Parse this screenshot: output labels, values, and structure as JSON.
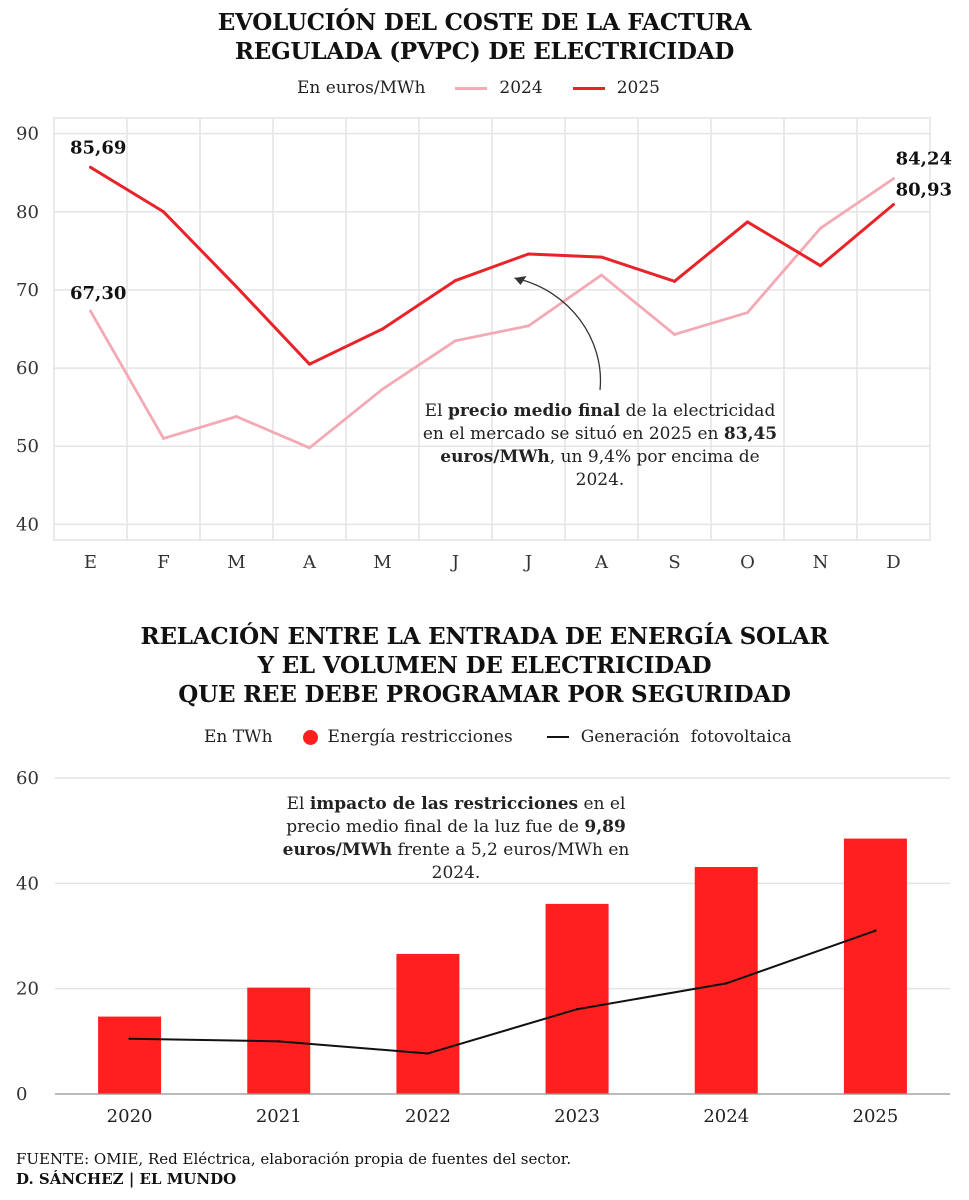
{
  "chart1": {
    "title_lines": [
      "EVOLUCIÓN DEL COSTE DE LA FACTURA",
      "REGULADA (PVPC) DE ELECTRICIDAD"
    ],
    "unit_label": "En euros/MWh",
    "annotation": {
      "parts": [
        {
          "t": "El ",
          "b": false
        },
        {
          "t": "precio medio final",
          "b": true
        },
        {
          "t": " de la electricidad en el mercado se situó en 2025 en ",
          "b": false
        },
        {
          "t": "83,45 euros/MWh",
          "b": true
        },
        {
          "t": ", un 9,4% por encima de 2024.",
          "b": false
        }
      ]
    },
    "value_labels": {
      "s2025_start": "85,69",
      "s2024_start": "67,30",
      "s2024_end": "84,24",
      "s2025_end": "80,93"
    }
  },
  "chart2": {
    "title_lines": [
      "RELACIÓN ENTRE LA ENTRADA DE ENERGÍA SOLAR",
      "Y EL VOLUMEN DE ELECTRICIDAD",
      "QUE REE DEBE PROGRAMAR POR SEGURIDAD"
    ],
    "unit_label": "En TWh",
    "annotation": {
      "parts": [
        {
          "t": "El ",
          "b": false
        },
        {
          "t": "impacto de las restricciones",
          "b": true
        },
        {
          "t": " en el precio medio final de la luz fue de ",
          "b": false
        },
        {
          "t": "9,89 euros/MWh",
          "b": true
        },
        {
          "t": " frente a 5,2 euros/MWh en 2024.",
          "b": false
        }
      ]
    }
  },
  "chart_data": [
    {
      "type": "line",
      "title": "EVOLUCIÓN DEL COSTE DE LA FACTURA REGULADA (PVPC) DE ELECTRICIDAD",
      "ylabel": "En euros/MWh",
      "categories": [
        "E",
        "F",
        "M",
        "A",
        "M",
        "J",
        "J",
        "A",
        "S",
        "O",
        "N",
        "D"
      ],
      "yticks": [
        40,
        50,
        60,
        70,
        80,
        90
      ],
      "ylim": [
        38,
        92
      ],
      "grid": true,
      "legend_position": "top",
      "series": [
        {
          "name": "2024",
          "color": "#f4aab5",
          "values": [
            67.3,
            51.0,
            53.8,
            49.8,
            57.3,
            63.5,
            65.4,
            71.9,
            64.3,
            67.1,
            77.9,
            84.24
          ]
        },
        {
          "name": "2025",
          "color": "#e8242a",
          "values": [
            85.69,
            80.0,
            70.4,
            60.5,
            65.0,
            71.2,
            74.6,
            74.2,
            71.1,
            78.7,
            73.1,
            80.93
          ]
        }
      ]
    },
    {
      "type": "bar",
      "title": "RELACIÓN ENTRE LA ENTRADA DE ENERGÍA SOLAR Y EL VOLUMEN DE ELECTRICIDAD QUE REE DEBE PROGRAMAR POR SEGURIDAD",
      "ylabel": "En TWh",
      "categories": [
        "2020",
        "2021",
        "2022",
        "2023",
        "2024",
        "2025"
      ],
      "yticks": [
        0,
        20,
        40,
        60
      ],
      "ylim": [
        0,
        60
      ],
      "grid": true,
      "legend_position": "top",
      "series": [
        {
          "name": "Energía restricciones",
          "type": "bar",
          "color": "#ff1f1f",
          "values": [
            14.7,
            20.2,
            26.6,
            36.1,
            43.1,
            48.5
          ]
        },
        {
          "name": "Generación  fotovoltaica",
          "type": "line",
          "color": "#111111",
          "values": [
            10.5,
            10.0,
            7.7,
            16.1,
            21.0,
            31.0
          ]
        }
      ]
    }
  ],
  "footer": {
    "source": "FUENTE: OMIE, Red Eléctrica, elaboración propia de fuentes del sector.",
    "credit": "D. SÁNCHEZ | EL MUNDO"
  }
}
